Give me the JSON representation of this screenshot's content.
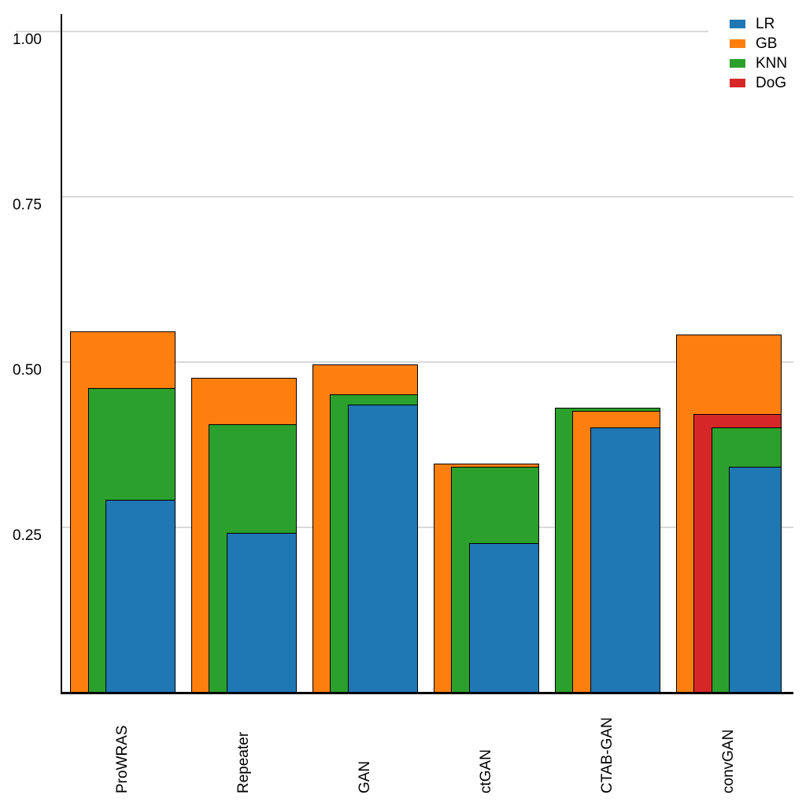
{
  "chart_data": {
    "type": "bar",
    "variant": "overlay-nested-bars",
    "title": "",
    "xlabel": "",
    "ylabel": "",
    "categories": [
      "ProWRAS",
      "Repeater",
      "GAN",
      "ctGAN",
      "CTAB-GAN",
      "convGAN"
    ],
    "series": [
      {
        "name": "LR",
        "color": "#1f77b4",
        "values": [
          0.29,
          0.24,
          0.435,
          0.225,
          0.4,
          0.34
        ]
      },
      {
        "name": "GB",
        "color": "#ff7f0e",
        "values": [
          0.545,
          0.475,
          0.495,
          0.345,
          0.425,
          0.54
        ]
      },
      {
        "name": "KNN",
        "color": "#2ca02c",
        "values": [
          0.46,
          0.405,
          0.45,
          0.34,
          0.43,
          0.4
        ]
      },
      {
        "name": "DoG",
        "color": "#d62728",
        "values": [
          null,
          null,
          null,
          null,
          null,
          0.42
        ]
      }
    ],
    "ylim": [
      0,
      1.025
    ],
    "yticks": [
      {
        "value": 0.25,
        "label": "0.25"
      },
      {
        "value": 0.5,
        "label": "0.50"
      },
      {
        "value": 0.75,
        "label": "0.75"
      },
      {
        "value": 1.0,
        "label": "1.00"
      }
    ],
    "grid": true,
    "gridline_color": "#d9d9d9",
    "bar_edge_color": "#000000",
    "legend_position": "top-right",
    "legend": [
      "LR",
      "GB",
      "KNN",
      "DoG"
    ]
  }
}
